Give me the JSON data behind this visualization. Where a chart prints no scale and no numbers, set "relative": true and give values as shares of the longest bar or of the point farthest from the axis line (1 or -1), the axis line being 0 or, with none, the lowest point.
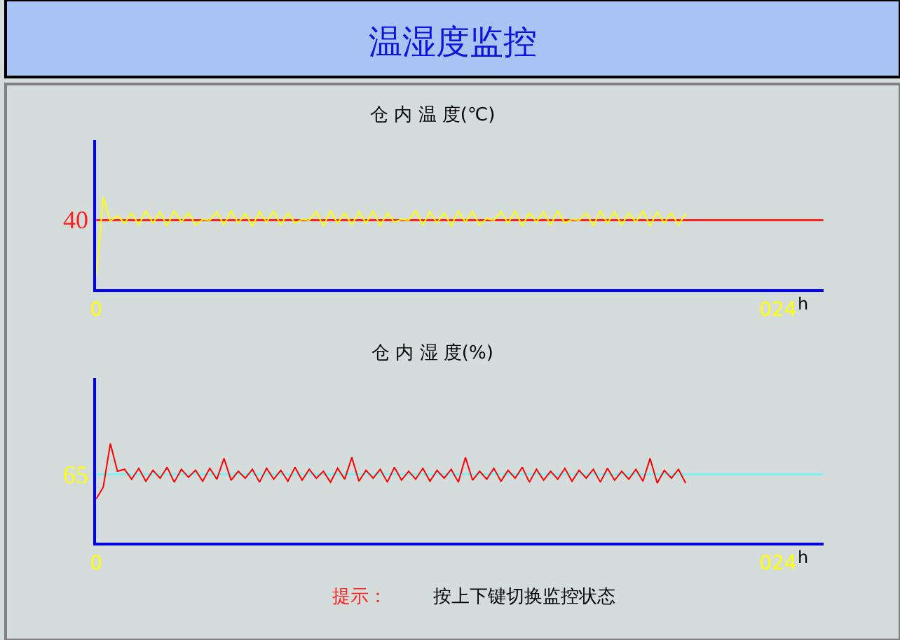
{
  "chart_data": [
    {
      "type": "other",
      "title": "温湿度监控"
    },
    {
      "type": "line",
      "relative": true,
      "title": "仓 内 温 度(℃)",
      "xlabel": "h",
      "xlim": [
        0,
        25.6
      ],
      "xticks": [
        0,
        {
          "value": 24,
          "label": "024"
        }
      ],
      "grid": false,
      "tick_labels": "x",
      "ref_lines": [
        {
          "axis": "y",
          "value": 0.75,
          "color": "#ff2020"
        }
      ],
      "annotations": [
        "40"
      ],
      "x": [
        0,
        0.25,
        0.5,
        0.75,
        1,
        1.25,
        1.5,
        1.75,
        2,
        2.25,
        2.5,
        2.75,
        3,
        3.25,
        3.5,
        3.75,
        4,
        4.25,
        4.5,
        4.75,
        5,
        5.25,
        5.5,
        5.75,
        6,
        6.25,
        6.5,
        6.75,
        7,
        7.25,
        7.5,
        7.75,
        8,
        8.25,
        8.5,
        8.75,
        9,
        9.25,
        9.5,
        9.75,
        10,
        10.25,
        10.5,
        10.75,
        11,
        11.25,
        11.5,
        11.75,
        12,
        12.25,
        12.5,
        12.75,
        13,
        13.25,
        13.5,
        13.75,
        14,
        14.25,
        14.5,
        14.75,
        15,
        15.25,
        15.5,
        15.75,
        16,
        16.25,
        16.5,
        16.75,
        17,
        17.25,
        17.5,
        17.75,
        18,
        18.25,
        18.5,
        18.75,
        19,
        19.25,
        19.5,
        19.75,
        20,
        20.25,
        20.5,
        20.75
      ],
      "series": [
        {
          "color": "#ffff00",
          "values": [
            0.14,
            1,
            0.74,
            0.8,
            0.72,
            0.83,
            0.7,
            0.85,
            0.72,
            0.84,
            0.69,
            0.85,
            0.73,
            0.83,
            0.7,
            0.76,
            0.75,
            0.84,
            0.7,
            0.85,
            0.72,
            0.82,
            0.69,
            0.84,
            0.73,
            0.85,
            0.7,
            0.83,
            0.72,
            0.76,
            0.75,
            0.84,
            0.69,
            0.85,
            0.72,
            0.83,
            0.7,
            0.84,
            0.72,
            0.85,
            0.69,
            0.83,
            0.73,
            0.76,
            0.75,
            0.85,
            0.7,
            0.84,
            0.72,
            0.83,
            0.69,
            0.85,
            0.73,
            0.84,
            0.7,
            0.77,
            0.75,
            0.84,
            0.72,
            0.85,
            0.69,
            0.83,
            0.73,
            0.84,
            0.7,
            0.85,
            0.72,
            0.76,
            0.75,
            0.83,
            0.69,
            0.85,
            0.72,
            0.84,
            0.7,
            0.83,
            0.73,
            0.85,
            0.69,
            0.84,
            0.72,
            0.83,
            0.7,
            0.82
          ]
        }
      ]
    },
    {
      "type": "line",
      "relative": true,
      "title": "仓 内 湿 度(%)",
      "xlabel": "h",
      "xlim": [
        0,
        25.6
      ],
      "xticks": [
        0,
        {
          "value": 24,
          "label": "024"
        }
      ],
      "grid": false,
      "tick_labels": "x",
      "ref_lines": [
        {
          "axis": "y",
          "value": 0.69,
          "color": "#80f0f0"
        }
      ],
      "annotations": [
        "65",
        "提示：",
        "按上下键切换监控状态"
      ],
      "x": [
        0,
        0.25,
        0.5,
        0.75,
        1,
        1.25,
        1.5,
        1.75,
        2,
        2.25,
        2.5,
        2.75,
        3,
        3.25,
        3.5,
        3.75,
        4,
        4.25,
        4.5,
        4.75,
        5,
        5.25,
        5.5,
        5.75,
        6,
        6.25,
        6.5,
        6.75,
        7,
        7.25,
        7.5,
        7.75,
        8,
        8.25,
        8.5,
        8.75,
        9,
        9.25,
        9.5,
        9.75,
        10,
        10.25,
        10.5,
        10.75,
        11,
        11.25,
        11.5,
        11.75,
        12,
        12.25,
        12.5,
        12.75,
        13,
        13.25,
        13.5,
        13.75,
        14,
        14.25,
        14.5,
        14.75,
        15,
        15.25,
        15.5,
        15.75,
        16,
        16.25,
        16.5,
        16.75,
        17,
        17.25,
        17.5,
        17.75,
        18,
        18.25,
        18.5,
        18.75,
        19,
        19.25,
        19.5,
        19.75,
        20,
        20.25,
        20.5,
        20.75
      ],
      "series": [
        {
          "color": "#ff0000",
          "values": [
            0.44,
            0.56,
            1.0,
            0.72,
            0.74,
            0.64,
            0.75,
            0.62,
            0.73,
            0.65,
            0.76,
            0.61,
            0.74,
            0.66,
            0.73,
            0.62,
            0.75,
            0.64,
            0.85,
            0.63,
            0.72,
            0.65,
            0.74,
            0.61,
            0.75,
            0.64,
            0.73,
            0.62,
            0.76,
            0.63,
            0.74,
            0.65,
            0.72,
            0.61,
            0.75,
            0.64,
            0.86,
            0.62,
            0.73,
            0.65,
            0.74,
            0.61,
            0.76,
            0.63,
            0.72,
            0.64,
            0.75,
            0.62,
            0.73,
            0.65,
            0.74,
            0.61,
            0.86,
            0.63,
            0.72,
            0.64,
            0.75,
            0.62,
            0.73,
            0.65,
            0.76,
            0.61,
            0.74,
            0.63,
            0.72,
            0.64,
            0.75,
            0.62,
            0.73,
            0.65,
            0.74,
            0.61,
            0.75,
            0.63,
            0.72,
            0.64,
            0.74,
            0.62,
            0.85,
            0.6,
            0.73,
            0.65,
            0.74,
            0.6
          ]
        }
      ]
    }
  ]
}
